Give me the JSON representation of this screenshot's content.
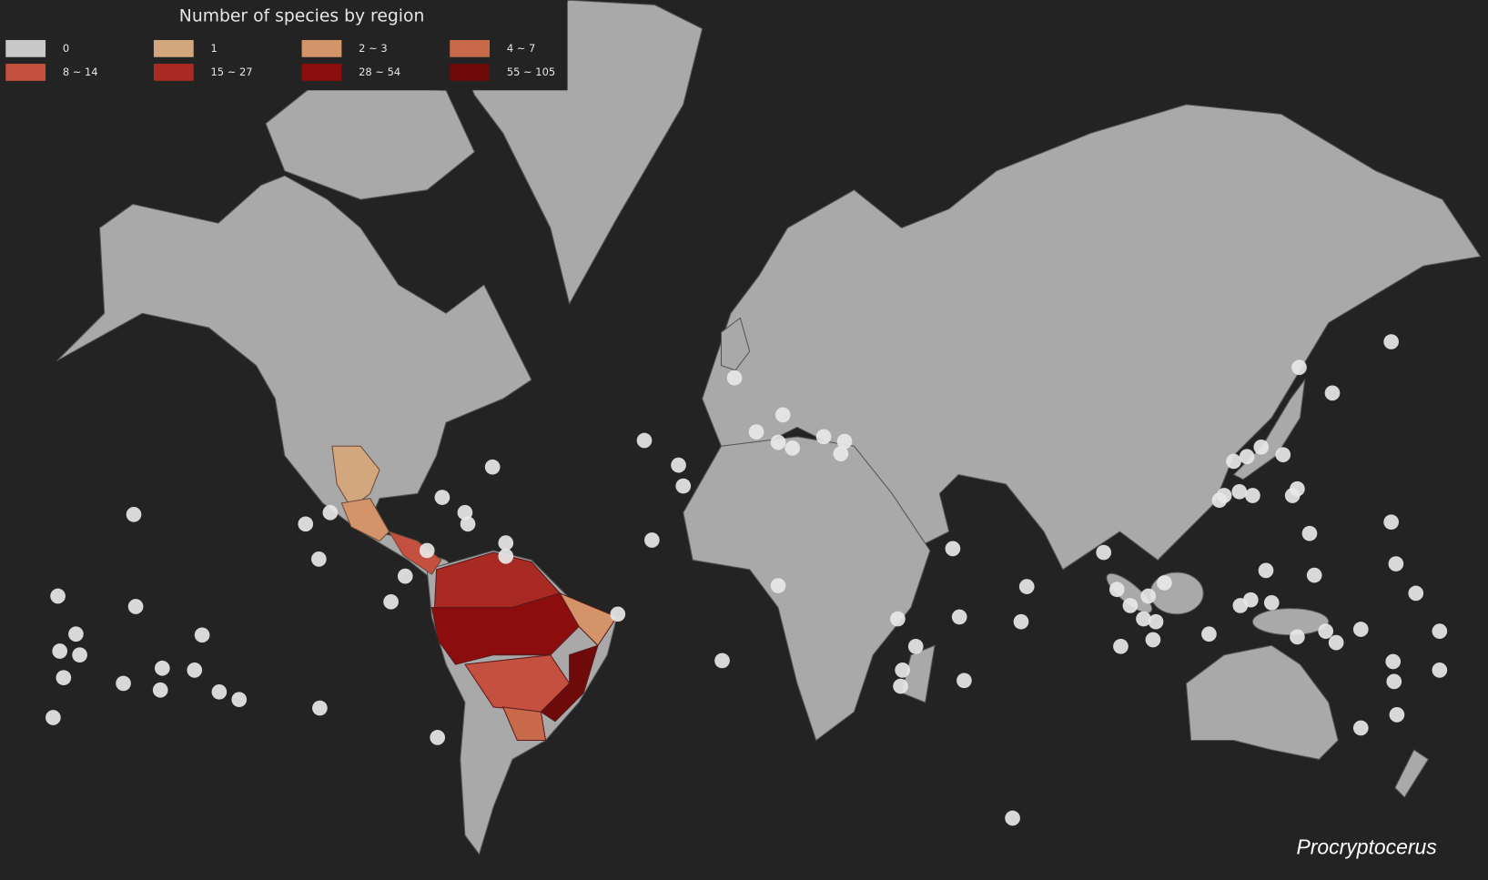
{
  "legend": {
    "title": "Number of species by region",
    "items": [
      {
        "label": "0",
        "color": "#c8c8c8"
      },
      {
        "label": "1",
        "color": "#d2a77e"
      },
      {
        "label": "2 ~ 3",
        "color": "#d4946a"
      },
      {
        "label": "4 ~ 7",
        "color": "#c8694a"
      },
      {
        "label": "8 ~ 14",
        "color": "#c4503f"
      },
      {
        "label": "15 ~ 27",
        "color": "#a82a22"
      },
      {
        "label": "28 ~ 54",
        "color": "#8b0d0d"
      },
      {
        "label": "55 ~ 105",
        "color": "#6e0a0a"
      }
    ]
  },
  "caption": "Procryptocerus"
}
